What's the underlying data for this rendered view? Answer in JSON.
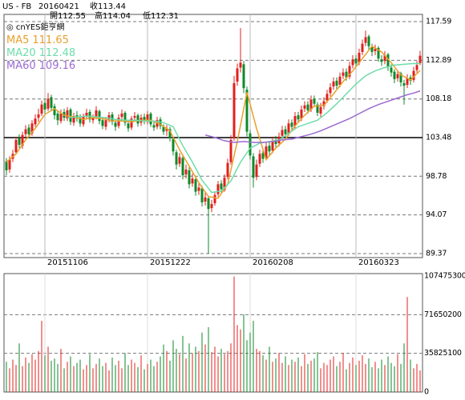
{
  "chart_data": {
    "type": "candlestick",
    "header": {
      "symbol": "US - FB",
      "date": "20160421",
      "quotes": [
        {
          "label": "收",
          "value": 113.44
        },
        {
          "label": "開",
          "value": 112.55
        },
        {
          "label": "高",
          "value": 114.04
        },
        {
          "label": "低",
          "value": 112.31
        }
      ]
    },
    "watermark": "◎ cnYES鉅亨網",
    "up_color": "#e0201c",
    "down_color": "#0e8a2a",
    "grid": true,
    "ylim": [
      88.88,
      118.47
    ],
    "yticks": [
      117.59,
      112.89,
      108.18,
      103.48,
      98.78,
      94.07,
      89.37
    ],
    "xticks": [
      {
        "value": 12,
        "label": "20151106"
      },
      {
        "value": 44,
        "label": "20151222"
      },
      {
        "value": 76,
        "label": "20160208"
      },
      {
        "value": 109,
        "label": "20160323"
      }
    ],
    "ohlc": [
      [
        100.6,
        101.0,
        98.9,
        99.5
      ],
      [
        99.6,
        101.2,
        99.2,
        100.8
      ],
      [
        100.9,
        102.0,
        100.5,
        101.5
      ],
      [
        101.7,
        103.6,
        101.4,
        103.2
      ],
      [
        103.4,
        103.9,
        102.2,
        102.6
      ],
      [
        102.5,
        104.2,
        102.1,
        103.8
      ],
      [
        103.9,
        105.0,
        103.5,
        104.5
      ],
      [
        104.7,
        105.1,
        103.4,
        103.9
      ],
      [
        104.0,
        105.6,
        103.7,
        105.2
      ],
      [
        105.1,
        106.3,
        104.8,
        105.8
      ],
      [
        105.9,
        107.0,
        105.4,
        106.3
      ],
      [
        106.4,
        108.0,
        106.1,
        107.5
      ],
      [
        107.7,
        108.2,
        106.4,
        106.9
      ],
      [
        107.0,
        108.9,
        106.7,
        108.2
      ],
      [
        108.4,
        108.7,
        106.8,
        107.1
      ],
      [
        107.3,
        107.6,
        105.7,
        106.2
      ],
      [
        106.4,
        106.8,
        105.0,
        105.6
      ],
      [
        105.5,
        106.9,
        105.2,
        106.4
      ],
      [
        106.6,
        107.0,
        105.5,
        105.9
      ],
      [
        105.8,
        107.2,
        105.5,
        106.8
      ],
      [
        106.9,
        107.1,
        105.0,
        105.4
      ],
      [
        105.3,
        106.5,
        104.9,
        106.1
      ],
      [
        106.2,
        106.7,
        105.4,
        105.8
      ],
      [
        105.9,
        106.3,
        104.8,
        105.2
      ],
      [
        105.1,
        106.4,
        104.8,
        106.0
      ],
      [
        106.1,
        107.0,
        105.7,
        106.5
      ],
      [
        106.6,
        106.9,
        105.3,
        105.7
      ],
      [
        105.6,
        106.3,
        105.2,
        105.9
      ],
      [
        106.0,
        107.3,
        105.7,
        106.8
      ],
      [
        106.7,
        106.9,
        105.1,
        105.5
      ],
      [
        105.6,
        105.9,
        104.5,
        104.9
      ],
      [
        104.8,
        106.0,
        104.4,
        105.6
      ],
      [
        105.7,
        106.6,
        105.3,
        106.2
      ],
      [
        106.3,
        106.6,
        105.0,
        105.4
      ],
      [
        105.3,
        105.6,
        104.3,
        104.8
      ],
      [
        104.9,
        106.3,
        104.6,
        105.9
      ],
      [
        106.0,
        106.9,
        105.6,
        106.4
      ],
      [
        106.5,
        106.7,
        104.9,
        105.3
      ],
      [
        105.2,
        105.5,
        104.2,
        104.6
      ],
      [
        104.7,
        106.1,
        104.4,
        105.8
      ],
      [
        105.9,
        106.6,
        105.5,
        106.1
      ],
      [
        106.2,
        106.4,
        104.8,
        105.2
      ],
      [
        105.3,
        106.3,
        104.9,
        105.9
      ],
      [
        106.0,
        106.4,
        105.1,
        105.5
      ],
      [
        105.4,
        106.7,
        105.1,
        106.3
      ],
      [
        106.4,
        106.6,
        104.8,
        105.1
      ],
      [
        105.0,
        105.4,
        104.3,
        104.7
      ],
      [
        104.8,
        106.0,
        104.5,
        105.6
      ],
      [
        105.7,
        106.0,
        104.5,
        104.9
      ],
      [
        104.8,
        105.1,
        103.8,
        104.2
      ],
      [
        104.3,
        105.0,
        103.7,
        104.6
      ],
      [
        104.5,
        104.8,
        103.0,
        103.4
      ],
      [
        103.3,
        103.6,
        101.3,
        101.8
      ],
      [
        101.7,
        102.0,
        99.6,
        100.2
      ],
      [
        100.3,
        101.6,
        99.9,
        101.1
      ],
      [
        101.0,
        101.3,
        98.4,
        98.9
      ],
      [
        99.0,
        100.2,
        98.5,
        99.6
      ],
      [
        99.5,
        99.9,
        97.3,
        97.8
      ],
      [
        97.9,
        99.1,
        97.5,
        98.5
      ],
      [
        98.4,
        98.8,
        96.4,
        96.9
      ],
      [
        97.0,
        97.9,
        96.5,
        97.4
      ],
      [
        97.3,
        97.6,
        95.1,
        95.6
      ],
      [
        95.7,
        96.8,
        95.2,
        96.2
      ],
      [
        96.1,
        96.4,
        89.37,
        94.8
      ],
      [
        94.9,
        95.9,
        94.4,
        95.4
      ],
      [
        95.5,
        96.9,
        95.2,
        96.5
      ],
      [
        96.6,
        98.2,
        96.3,
        97.8
      ],
      [
        97.9,
        98.3,
        96.8,
        97.2
      ],
      [
        97.1,
        99.0,
        96.9,
        98.6
      ],
      [
        98.7,
        100.9,
        98.4,
        100.4
      ],
      [
        100.5,
        103.8,
        100.2,
        103.2
      ],
      [
        103.4,
        111.0,
        103.1,
        110.1
      ],
      [
        110.3,
        112.5,
        109.8,
        111.9
      ],
      [
        112.0,
        116.8,
        111.4,
        112.6
      ],
      [
        112.4,
        112.8,
        108.9,
        109.5
      ],
      [
        109.3,
        109.7,
        103.6,
        104.2
      ],
      [
        104.0,
        104.4,
        100.8,
        101.3
      ],
      [
        101.2,
        101.6,
        97.4,
        98.6
      ],
      [
        98.7,
        100.8,
        98.3,
        100.2
      ],
      [
        100.3,
        102.0,
        99.9,
        101.5
      ],
      [
        101.6,
        102.0,
        100.4,
        100.9
      ],
      [
        101.0,
        102.9,
        100.7,
        102.4
      ],
      [
        102.5,
        102.9,
        101.3,
        101.8
      ],
      [
        101.9,
        103.6,
        101.6,
        103.1
      ],
      [
        103.2,
        103.7,
        102.3,
        102.7
      ],
      [
        102.8,
        104.1,
        102.4,
        103.6
      ],
      [
        103.7,
        104.9,
        103.3,
        104.4
      ],
      [
        104.5,
        104.9,
        103.5,
        103.9
      ],
      [
        104.0,
        105.7,
        103.7,
        105.2
      ],
      [
        105.3,
        105.7,
        104.4,
        104.8
      ],
      [
        104.9,
        106.6,
        104.6,
        106.1
      ],
      [
        106.2,
        106.6,
        105.3,
        105.7
      ],
      [
        105.8,
        107.4,
        105.5,
        106.9
      ],
      [
        107.0,
        107.9,
        106.6,
        107.4
      ],
      [
        107.5,
        107.9,
        106.4,
        106.8
      ],
      [
        106.9,
        108.6,
        106.6,
        108.1
      ],
      [
        108.2,
        108.6,
        107.2,
        107.6
      ],
      [
        107.5,
        107.8,
        106.1,
        106.5
      ],
      [
        106.4,
        107.7,
        106.0,
        107.2
      ],
      [
        107.3,
        108.4,
        106.9,
        107.9
      ],
      [
        108.0,
        109.3,
        107.7,
        108.8
      ],
      [
        108.9,
        110.1,
        108.5,
        109.6
      ],
      [
        109.7,
        110.8,
        109.3,
        110.3
      ],
      [
        110.4,
        110.8,
        109.4,
        109.8
      ],
      [
        109.9,
        111.4,
        109.6,
        110.9
      ],
      [
        111.0,
        111.9,
        110.6,
        111.4
      ],
      [
        111.5,
        111.9,
        110.4,
        110.8
      ],
      [
        110.9,
        112.7,
        110.6,
        112.2
      ],
      [
        112.3,
        113.5,
        111.9,
        113.0
      ],
      [
        113.1,
        113.5,
        112.1,
        112.5
      ],
      [
        112.6,
        114.3,
        112.3,
        113.8
      ],
      [
        113.9,
        115.4,
        113.5,
        114.9
      ],
      [
        115.0,
        116.5,
        114.6,
        115.7
      ],
      [
        115.8,
        116.0,
        114.2,
        114.6
      ],
      [
        114.5,
        114.9,
        113.4,
        113.9
      ],
      [
        114.0,
        114.8,
        113.5,
        114.3
      ],
      [
        114.4,
        114.6,
        112.7,
        113.1
      ],
      [
        113.0,
        113.5,
        112.2,
        112.7
      ],
      [
        112.8,
        114.0,
        112.4,
        113.5
      ],
      [
        113.6,
        113.8,
        111.6,
        112.1
      ],
      [
        112.0,
        112.4,
        110.9,
        111.4
      ],
      [
        111.5,
        111.8,
        110.1,
        110.6
      ],
      [
        110.7,
        111.7,
        110.3,
        111.2
      ],
      [
        111.3,
        111.5,
        109.7,
        110.2
      ],
      [
        110.1,
        110.5,
        107.5,
        109.8
      ],
      [
        109.9,
        111.2,
        109.5,
        110.7
      ],
      [
        110.8,
        111.1,
        109.9,
        110.4
      ],
      [
        110.5,
        112.1,
        110.2,
        111.6
      ],
      [
        111.7,
        112.8,
        111.4,
        112.3
      ],
      [
        112.55,
        114.04,
        112.31,
        113.44
      ]
    ],
    "volume": [
      28000000,
      22000000,
      30000000,
      25000000,
      45000000,
      24000000,
      32000000,
      27000000,
      35000000,
      30000000,
      38000000,
      66000000,
      34000000,
      42000000,
      29000000,
      31000000,
      26000000,
      40000000,
      22000000,
      28000000,
      33000000,
      24000000,
      27000000,
      30000000,
      21000000,
      25000000,
      35000000,
      22000000,
      26000000,
      31000000,
      24000000,
      27000000,
      20000000,
      32000000,
      25000000,
      29000000,
      22000000,
      36000000,
      25000000,
      30000000,
      27000000,
      23000000,
      34000000,
      21000000,
      26000000,
      30000000,
      24000000,
      28000000,
      33000000,
      44000000,
      38000000,
      29000000,
      48000000,
      40000000,
      35000000,
      52000000,
      31000000,
      45000000,
      36000000,
      42000000,
      38000000,
      55000000,
      44000000,
      60000000,
      37000000,
      42000000,
      33000000,
      40000000,
      35000000,
      38000000,
      45000000,
      107000000,
      62000000,
      58000000,
      72000000,
      48000000,
      55000000,
      66000000,
      40000000,
      38000000,
      34000000,
      30000000,
      42000000,
      28000000,
      31000000,
      36000000,
      27000000,
      33000000,
      25000000,
      30000000,
      28000000,
      32000000,
      24000000,
      35000000,
      26000000,
      29000000,
      31000000,
      37000000,
      22000000,
      27000000,
      25000000,
      30000000,
      33000000,
      24000000,
      28000000,
      36000000,
      21000000,
      27000000,
      32000000,
      25000000,
      29000000,
      34000000,
      26000000,
      31000000,
      23000000,
      28000000,
      22000000,
      30000000,
      25000000,
      33000000,
      27000000,
      24000000,
      35000000,
      26000000,
      45000000,
      88000000,
      30000000,
      22000000,
      26000000,
      20000000
    ],
    "volume_axis": {
      "ylim": [
        0,
        109700000
      ],
      "yticks": [
        107475300,
        71650200,
        35825100,
        0
      ]
    },
    "ma": [
      {
        "name": "MA5",
        "legend_value": 111.65,
        "color": "#e8a02e",
        "x": [
          0,
          3,
          6,
          9,
          12,
          15,
          18,
          21,
          24,
          27,
          30,
          33,
          36,
          39,
          42,
          45,
          48,
          51,
          54,
          57,
          60,
          63,
          66,
          69,
          72,
          75,
          78,
          81,
          84,
          87,
          90,
          93,
          96,
          99,
          102,
          105,
          108,
          111,
          114,
          117,
          120,
          123,
          126,
          129
        ],
        "values": [
          100.5,
          101.5,
          103.2,
          104.6,
          106.3,
          107.0,
          106.2,
          106.0,
          105.7,
          105.9,
          105.8,
          105.5,
          105.5,
          105.4,
          105.6,
          105.6,
          105.1,
          104.3,
          102.0,
          100.0,
          98.0,
          96.3,
          96.1,
          97.8,
          103.0,
          109.0,
          104.6,
          100.8,
          102.2,
          103.3,
          104.9,
          106.2,
          107.3,
          107.4,
          108.8,
          110.3,
          111.6,
          113.1,
          114.6,
          113.9,
          112.6,
          111.1,
          110.5,
          111.65
        ]
      },
      {
        "name": "MA20",
        "legend_value": 112.48,
        "color": "#6fdcaa",
        "x": [
          19,
          22,
          25,
          28,
          31,
          34,
          37,
          40,
          43,
          46,
          49,
          52,
          55,
          58,
          61,
          64,
          67,
          70,
          73,
          76,
          79,
          82,
          85,
          88,
          91,
          94,
          97,
          100,
          103,
          106,
          109,
          112,
          115,
          118,
          121,
          124,
          127,
          129
        ],
        "values": [
          105.9,
          106.0,
          106.1,
          106.0,
          105.9,
          105.7,
          105.6,
          105.6,
          105.5,
          105.5,
          105.3,
          104.8,
          102.5,
          100.5,
          98.3,
          96.8,
          97.0,
          98.2,
          100.5,
          102.2,
          102.8,
          103.0,
          103.2,
          104.0,
          104.8,
          105.2,
          105.6,
          106.5,
          107.6,
          108.8,
          110.0,
          111.0,
          111.6,
          112.0,
          112.3,
          112.4,
          112.5,
          112.48
        ]
      },
      {
        "name": "MA60",
        "legend_value": 109.16,
        "color": "#9b6ad2",
        "x": [
          62,
          65,
          68,
          71,
          74,
          77,
          80,
          83,
          86,
          89,
          92,
          95,
          98,
          101,
          104,
          107,
          110,
          113,
          116,
          119,
          122,
          125,
          127,
          129
        ],
        "values": [
          103.8,
          103.5,
          103.1,
          102.9,
          103.0,
          102.9,
          102.9,
          103.0,
          103.2,
          103.3,
          103.6,
          103.9,
          104.3,
          104.8,
          105.3,
          105.8,
          106.4,
          107.0,
          107.5,
          107.9,
          108.3,
          108.7,
          108.9,
          109.16
        ]
      }
    ]
  }
}
